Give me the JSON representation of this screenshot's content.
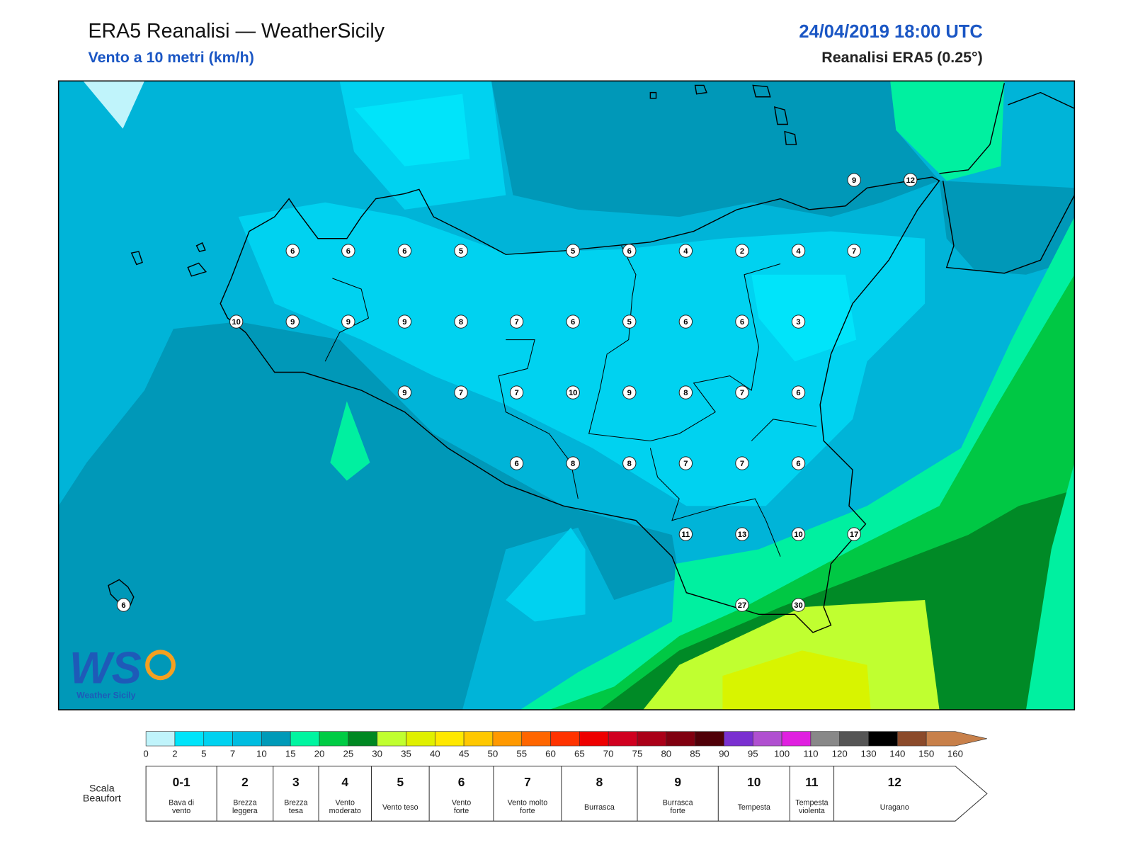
{
  "header": {
    "title": "ERA5 Reanalisi — WeatherSicily",
    "subtitle": "Vento a 10 metri (km/h)",
    "datetime": "24/04/2019 18:00 UTC",
    "source": "Reanalisi ERA5 (0.25°)"
  },
  "map": {
    "stations": [
      6,
      6,
      6,
      5,
      5,
      6,
      4,
      2,
      4,
      7,
      10,
      9,
      9,
      9,
      8,
      7,
      6,
      5,
      6,
      6,
      3,
      9,
      7,
      7,
      10,
      9,
      8,
      7,
      6,
      6,
      8,
      8,
      7,
      7,
      6,
      11,
      13,
      10,
      17,
      27,
      30,
      9,
      12,
      6
    ]
  },
  "logo": {
    "text": "WS",
    "subtitle": "Weather Sicily"
  },
  "colorbar": {
    "ticks": [
      0,
      2,
      5,
      7,
      10,
      15,
      20,
      25,
      30,
      35,
      40,
      45,
      50,
      55,
      60,
      65,
      70,
      75,
      80,
      85,
      90,
      95,
      100,
      110,
      120,
      130,
      140,
      150,
      160
    ],
    "colors": [
      "#c0f4fb",
      "#00e4fa",
      "#00d2f0",
      "#00bde0",
      "#009ab8",
      "#00f5a0",
      "#00cc44",
      "#008822",
      "#c0ff30",
      "#e0f000",
      "#ffe800",
      "#ffc800",
      "#ff9900",
      "#ff6600",
      "#ff3300",
      "#ee0000",
      "#d00020",
      "#aa0018",
      "#800010",
      "#500008",
      "#7a30d0",
      "#b050d0",
      "#e020e0",
      "#888888",
      "#555555",
      "#000000",
      "#8b4a2a",
      "#c8804a"
    ]
  },
  "beaufort": {
    "label": [
      "Scala",
      "Beaufort"
    ],
    "entries": [
      {
        "force": "0-1",
        "desc": [
          "Bava di",
          "vento"
        ]
      },
      {
        "force": "2",
        "desc": [
          "Brezza",
          "leggera"
        ]
      },
      {
        "force": "3",
        "desc": [
          "Brezza",
          "tesa"
        ]
      },
      {
        "force": "4",
        "desc": [
          "Vento",
          "moderato"
        ]
      },
      {
        "force": "5",
        "desc": [
          "Vento teso"
        ]
      },
      {
        "force": "6",
        "desc": [
          "Vento",
          "forte"
        ]
      },
      {
        "force": "7",
        "desc": [
          "Vento molto",
          "forte"
        ]
      },
      {
        "force": "8",
        "desc": [
          "Burrasca"
        ]
      },
      {
        "force": "9",
        "desc": [
          "Burrasca",
          "forte"
        ]
      },
      {
        "force": "10",
        "desc": [
          "Tempesta"
        ]
      },
      {
        "force": "11",
        "desc": [
          "Tempesta",
          "violenta"
        ]
      },
      {
        "force": "12",
        "desc": [
          "Uragano"
        ]
      }
    ]
  }
}
